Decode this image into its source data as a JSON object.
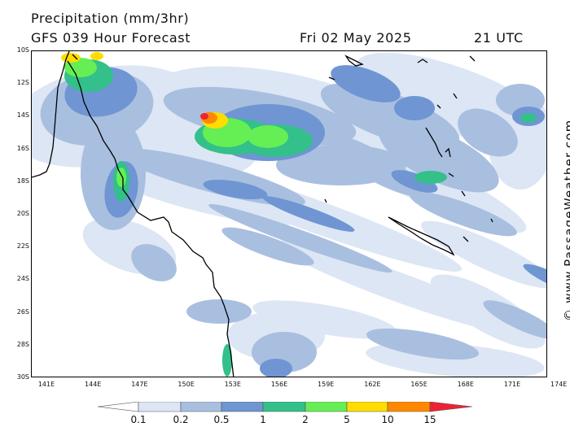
{
  "header": {
    "title": "Precipitation (mm/3hr)",
    "model_line": "GFS 039 Hour Forecast",
    "date": "Fri 02 May 2025",
    "time": "21 UTC"
  },
  "watermark": "© www.PassageWeather.com",
  "map": {
    "lat_labels": [
      "10S",
      "12S",
      "14S",
      "16S",
      "18S",
      "20S",
      "22S",
      "24S",
      "26S",
      "28S",
      "30S"
    ],
    "lon_labels": [
      "141E",
      "144E",
      "147E",
      "150E",
      "153E",
      "156E",
      "159E",
      "162E",
      "165E",
      "168E",
      "171E",
      "174E"
    ],
    "ocean_color": "#ffffff",
    "coastline_color": "#000000"
  },
  "colorbar": {
    "labels": [
      "0.1",
      "0.2",
      "0.5",
      "1",
      "2",
      "5",
      "10",
      "15"
    ],
    "colors": [
      "#ffffff",
      "#dde6f4",
      "#a9bfe0",
      "#6f95d3",
      "#33c08a",
      "#66ee55",
      "#ffdd00",
      "#ff8800",
      "#ee2233"
    ]
  }
}
